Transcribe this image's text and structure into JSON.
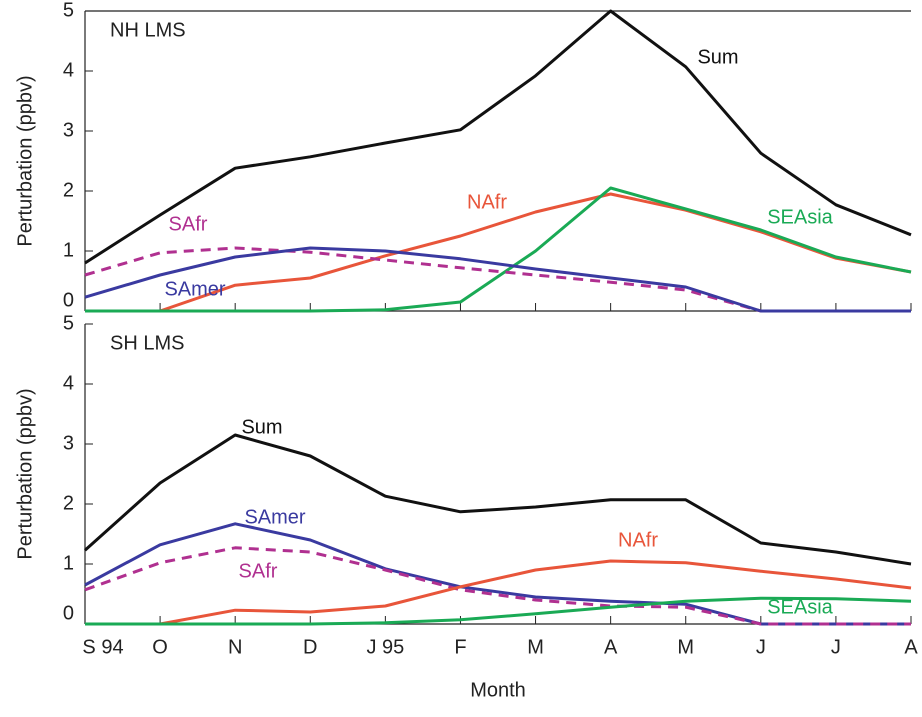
{
  "chart_data": [
    {
      "type": "line",
      "title": "NH LMS",
      "ylabel": "Perturbation (ppbv)",
      "ylim": [
        0,
        5
      ],
      "yticks": [
        0,
        1,
        2,
        3,
        4,
        5
      ],
      "series": [
        {
          "name": "Sum",
          "color": "#111111",
          "values": [
            0.8,
            1.6,
            2.38,
            2.57,
            2.8,
            3.02,
            3.92,
            5.0,
            4.07,
            2.63,
            1.77,
            1.27
          ]
        },
        {
          "name": "NAfr",
          "color": "#e8553a",
          "values": [
            0,
            0,
            0.43,
            0.55,
            0.92,
            1.25,
            1.65,
            1.95,
            1.68,
            1.32,
            0.88,
            0.65
          ]
        },
        {
          "name": "SEAsia",
          "color": "#1aaa55",
          "values": [
            0,
            0,
            0,
            0,
            0.02,
            0.15,
            1.0,
            2.05,
            1.7,
            1.35,
            0.9,
            0.65
          ]
        },
        {
          "name": "SAfr",
          "color": "#b03090",
          "dashed": true,
          "values": [
            0.6,
            0.97,
            1.05,
            0.98,
            0.85,
            0.72,
            0.6,
            0.48,
            0.35,
            0,
            0,
            0
          ]
        },
        {
          "name": "SAmer",
          "color": "#3a3aa0",
          "values": [
            0.23,
            0.6,
            0.9,
            1.05,
            1.0,
            0.87,
            0.7,
            0.55,
            0.4,
            0,
            0,
            0
          ]
        }
      ]
    },
    {
      "type": "line",
      "title": "SH LMS",
      "ylabel": "Perturbation (ppbv)",
      "xlabel": "Month",
      "categories": [
        "S 94",
        "O",
        "N",
        "D",
        "J 95",
        "F",
        "M",
        "A",
        "M",
        "J",
        "J",
        "A"
      ],
      "ylim": [
        0,
        5
      ],
      "yticks": [
        0,
        1,
        2,
        3,
        4,
        5
      ],
      "series": [
        {
          "name": "Sum",
          "color": "#111111",
          "values": [
            1.23,
            2.35,
            3.15,
            2.8,
            2.13,
            1.87,
            1.95,
            2.07,
            2.07,
            1.35,
            1.2,
            1.0
          ]
        },
        {
          "name": "SAmer",
          "color": "#3a3aa0",
          "values": [
            0.65,
            1.32,
            1.67,
            1.4,
            0.92,
            0.62,
            0.45,
            0.38,
            0.33,
            0,
            0,
            0
          ]
        },
        {
          "name": "SAfr",
          "color": "#b03090",
          "dashed": true,
          "values": [
            0.57,
            1.02,
            1.27,
            1.2,
            0.9,
            0.57,
            0.4,
            0.3,
            0.28,
            0,
            0,
            0
          ]
        },
        {
          "name": "NAfr",
          "color": "#e8553a",
          "values": [
            0,
            0,
            0.23,
            0.2,
            0.3,
            0.62,
            0.9,
            1.05,
            1.02,
            0.88,
            0.75,
            0.6
          ]
        },
        {
          "name": "SEAsia",
          "color": "#1aaa55",
          "values": [
            0,
            0,
            0,
            0,
            0.02,
            0.07,
            0.17,
            0.28,
            0.38,
            0.43,
            0.42,
            0.38
          ]
        }
      ]
    }
  ]
}
